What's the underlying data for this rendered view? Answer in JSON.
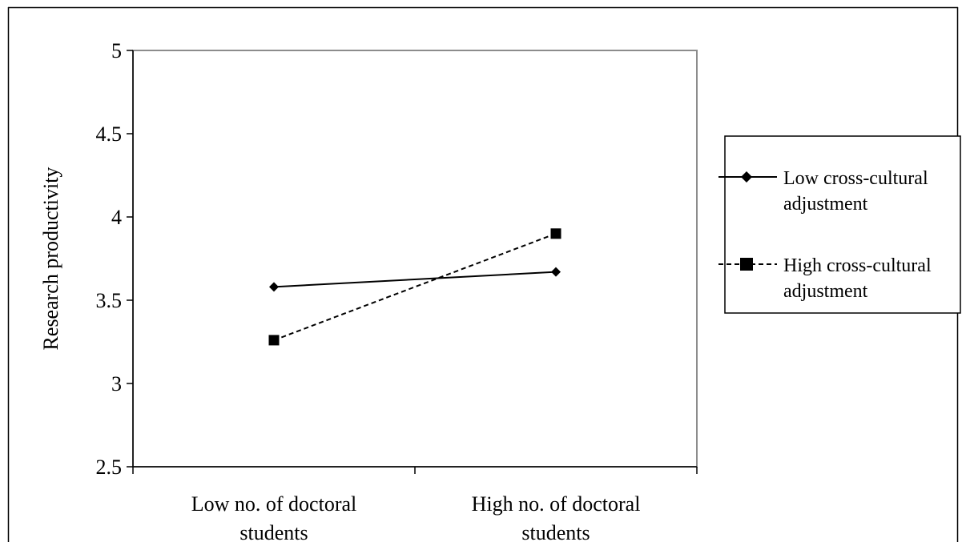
{
  "chart_data": {
    "type": "line",
    "title": "",
    "xlabel": "",
    "ylabel": "Research productivity",
    "ylim": [
      2.5,
      5
    ],
    "y_ticks": [
      "2.5",
      "3",
      "3.5",
      "4",
      "4.5",
      "5"
    ],
    "categories": [
      [
        "Low no. of doctoral",
        "students"
      ],
      [
        "High no. of doctoral",
        "students"
      ]
    ],
    "grid": false,
    "legend_position": "right",
    "series": [
      {
        "name": [
          "Low cross-cultural",
          "adjustment"
        ],
        "values": [
          3.58,
          3.67
        ],
        "marker": "diamond",
        "line_style": "solid",
        "color": "#000000"
      },
      {
        "name": [
          "High cross-cultural",
          "adjustment"
        ],
        "values": [
          3.26,
          3.9
        ],
        "marker": "square",
        "line_style": "dashed",
        "color": "#000000"
      }
    ]
  }
}
